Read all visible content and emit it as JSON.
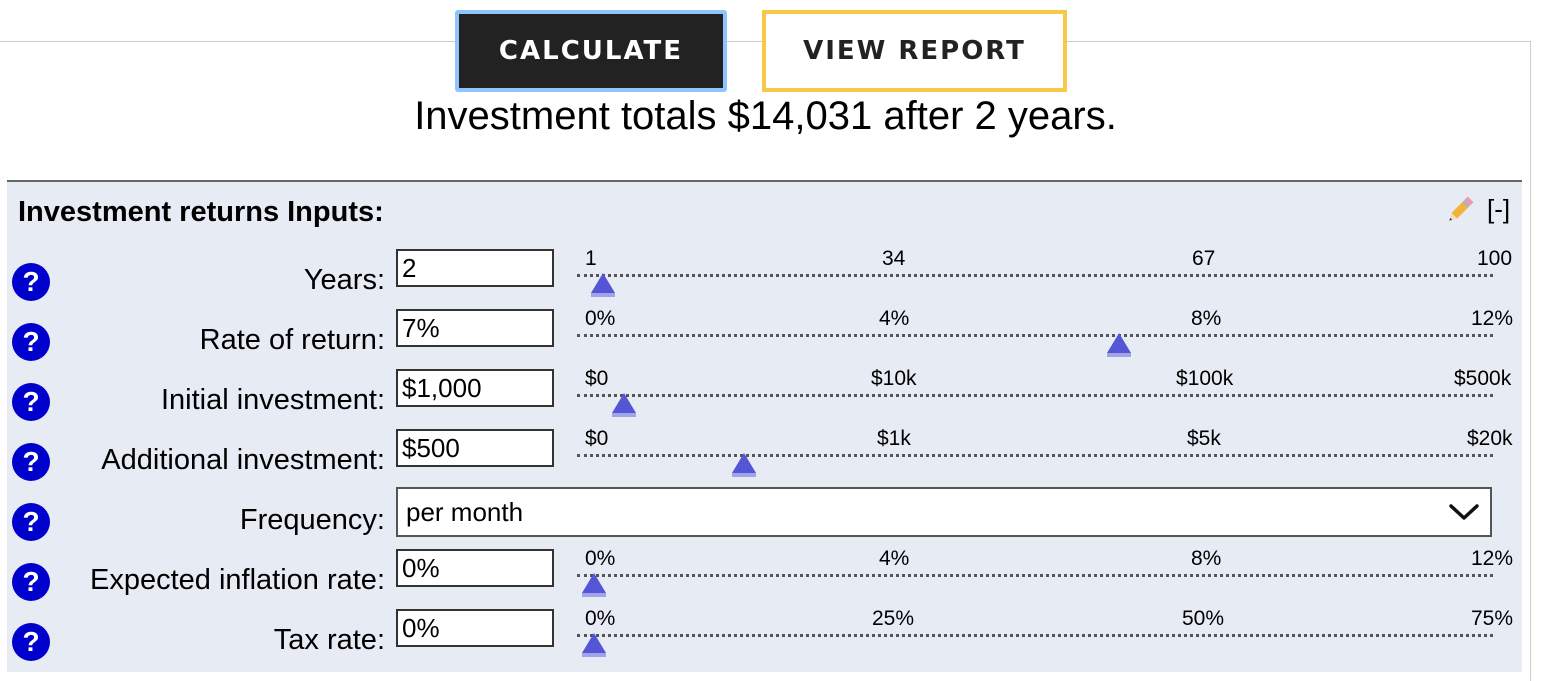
{
  "buttons": {
    "calculate": "CALCULATE",
    "view_report": "VIEW REPORT"
  },
  "summary": "Investment totals $14,031 after 2 years.",
  "panel": {
    "title": "Investment returns Inputs:",
    "collapse": "[-]",
    "help_glyph": "?",
    "icons": {
      "edit": "pencil-icon",
      "help": "help-icon",
      "dropdown": "chevron-down-icon"
    },
    "rows": [
      {
        "label": "Years:",
        "value": "2",
        "ticks": [
          "1",
          "34",
          "67",
          "100"
        ],
        "slider_fraction": 0.01
      },
      {
        "label": "Rate of return:",
        "value": "7%",
        "ticks": [
          "0%",
          "4%",
          "8%",
          "12%"
        ],
        "slider_fraction": 0.583
      },
      {
        "label": "Initial investment:",
        "value": "$1,000",
        "ticks": [
          "$0",
          "$10k",
          "$100k",
          "$500k"
        ],
        "slider_fraction": 0.033
      },
      {
        "label": "Additional investment:",
        "value": "$500",
        "ticks": [
          "$0",
          "$1k",
          "$5k",
          "$20k"
        ],
        "slider_fraction": 0.167
      },
      {
        "label": "Frequency:",
        "selected": "per month"
      },
      {
        "label": "Expected inflation rate:",
        "value": "0%",
        "ticks": [
          "0%",
          "4%",
          "8%",
          "12%"
        ],
        "slider_fraction": 0.0
      },
      {
        "label": "Tax rate:",
        "value": "0%",
        "ticks": [
          "0%",
          "25%",
          "50%",
          "75%"
        ],
        "slider_fraction": 0.0
      }
    ]
  },
  "colors": {
    "slider_thumb": "#5456d6",
    "help_bg": "#0000cc",
    "panel_bg": "#e6ebf4",
    "report_border": "#f6c94a",
    "calc_focus": "#8ec5ff"
  }
}
